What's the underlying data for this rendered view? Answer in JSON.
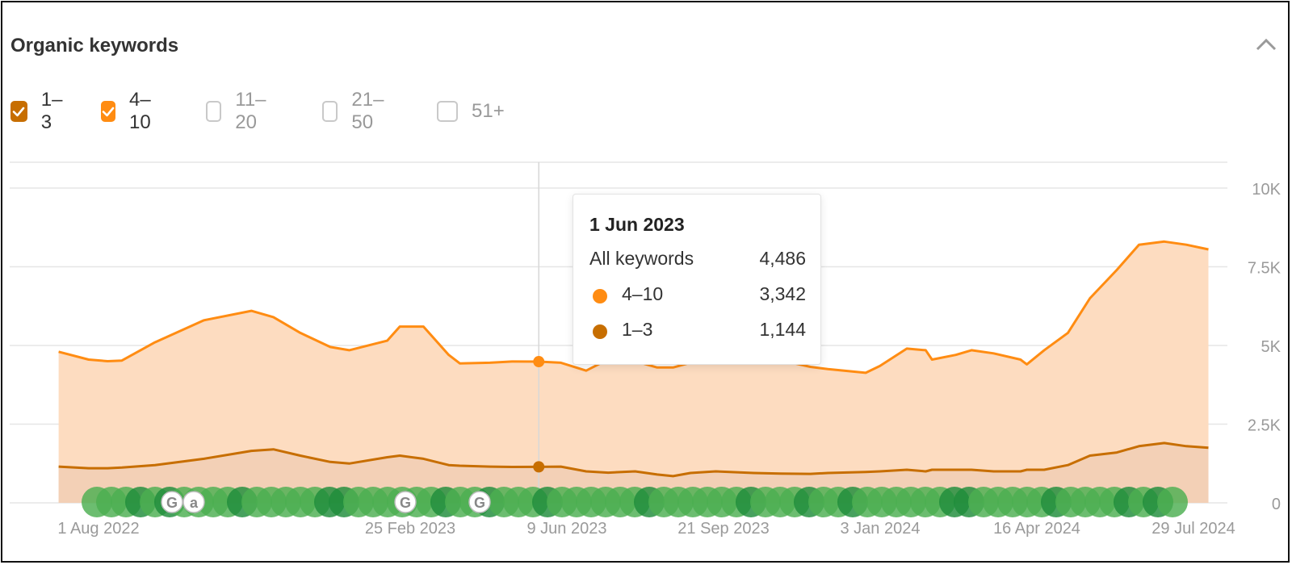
{
  "header": {
    "title": "Organic keywords",
    "collapse_icon": "chevron-up-icon"
  },
  "filters": [
    {
      "label": "1–3",
      "checked": true,
      "color": "#c76e00"
    },
    {
      "label": "4–10",
      "checked": true,
      "color": "#ff8c12"
    },
    {
      "label": "11–20",
      "checked": false,
      "color": "#c9c9c9"
    },
    {
      "label": "21–50",
      "checked": false,
      "color": "#c9c9c9"
    },
    {
      "label": "51+",
      "checked": false,
      "color": "#c9c9c9"
    }
  ],
  "tooltip": {
    "date": "1 Jun 2023",
    "rows": [
      {
        "label": "All keywords",
        "value": "4,486"
      },
      {
        "label": "4–10",
        "value": "3,342",
        "color": "#ff8c12"
      },
      {
        "label": "1–3",
        "value": "1,144",
        "color": "#c76e00"
      }
    ]
  },
  "colors": {
    "top10_line": "#ff8c12",
    "top10_fill": "#fddcc0",
    "top3_line": "#c76e00",
    "top3_fill": "#f3d0b6",
    "update_marker": "#4caf50",
    "update_marker_dark": "#1e8c3a"
  },
  "chart_data": {
    "type": "area",
    "x_ticks": [
      "1 Aug 2022",
      "25 Feb 2023",
      "9 Jun 2023",
      "21 Sep 2023",
      "3 Jan 2024",
      "16 Apr 2024",
      "29 Jul 2024"
    ],
    "y_ticks": [
      "0",
      "2.5K",
      "5K",
      "7.5K",
      "10K"
    ],
    "ylim": [
      0,
      10000
    ],
    "stacked": true,
    "grid": true,
    "x": [
      "2022-08-01",
      "2022-08-20",
      "2022-09-01",
      "2022-09-10",
      "2022-10-01",
      "2022-11-01",
      "2022-12-01",
      "2022-12-15",
      "2023-01-01",
      "2023-01-20",
      "2023-02-01",
      "2023-02-25",
      "2023-03-05",
      "2023-03-20",
      "2023-04-05",
      "2023-04-12",
      "2023-05-01",
      "2023-05-15",
      "2023-06-01",
      "2023-06-15",
      "2023-07-01",
      "2023-07-15",
      "2023-08-01",
      "2023-08-15",
      "2023-08-25",
      "2023-09-05",
      "2023-09-21",
      "2023-10-15",
      "2023-11-01",
      "2023-11-20",
      "2023-12-01",
      "2023-12-25",
      "2024-01-03",
      "2024-01-20",
      "2024-02-01",
      "2024-02-05",
      "2024-02-20",
      "2024-03-01",
      "2024-03-15",
      "2024-04-01",
      "2024-04-05",
      "2024-04-16",
      "2024-05-01",
      "2024-05-15",
      "2024-06-01",
      "2024-06-15",
      "2024-07-01",
      "2024-07-15",
      "2024-07-29"
    ],
    "series": [
      {
        "name": "1–3",
        "values": [
          1150,
          1100,
          1100,
          1120,
          1200,
          1400,
          1650,
          1700,
          1500,
          1300,
          1250,
          1450,
          1500,
          1400,
          1200,
          1180,
          1150,
          1140,
          1144,
          1150,
          1000,
          960,
          1000,
          900,
          850,
          950,
          1000,
          950,
          930,
          920,
          950,
          980,
          1000,
          1050,
          1000,
          1050,
          1050,
          1050,
          1000,
          1000,
          1050,
          1050,
          1200,
          1500,
          1600,
          1800,
          1900,
          1800,
          1750
        ]
      },
      {
        "name": "4–10",
        "values": [
          3650,
          3450,
          3400,
          3400,
          3900,
          4400,
          4450,
          4200,
          3900,
          3650,
          3600,
          3700,
          4100,
          4200,
          3500,
          3250,
          3300,
          3350,
          3342,
          3300,
          3200,
          3600,
          3500,
          3400,
          3450,
          3500,
          3700,
          3600,
          3600,
          3400,
          3300,
          3150,
          3350,
          3850,
          3850,
          3500,
          3650,
          3800,
          3750,
          3550,
          3350,
          3800,
          4200,
          5000,
          5800,
          6400,
          6400,
          6400,
          6300
        ]
      }
    ],
    "tooltip_x": "2023-06-01",
    "markers_labels": [
      "G",
      "a",
      "G",
      "G"
    ]
  }
}
